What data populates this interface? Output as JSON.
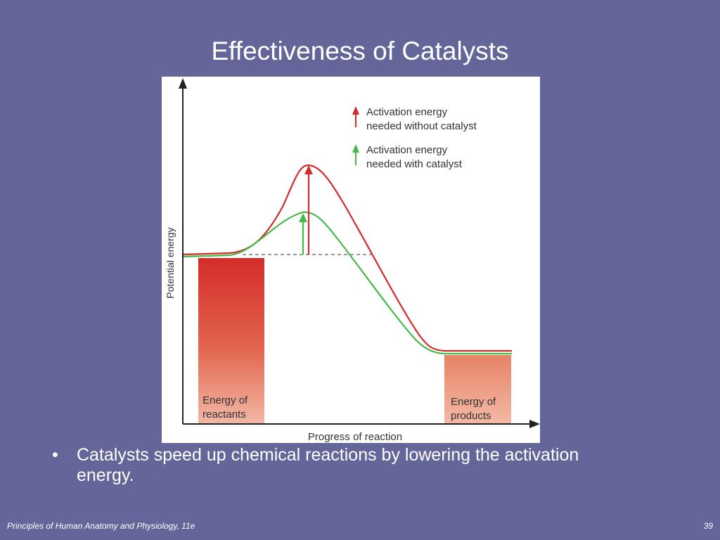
{
  "slide": {
    "title": "Effectiveness of Catalysts",
    "bullet": "Catalysts speed up chemical reactions by lowering the activation energy.",
    "footer_left": "Principles of Human Anatomy and Physiology, 11e",
    "page_number": "39"
  },
  "diagram": {
    "y_axis_label": "Potential energy",
    "x_axis_label": "Progress of reaction",
    "legend": [
      {
        "label_line1": "Activation energy",
        "label_line2": "needed without catalyst",
        "color": "#d42a2a"
      },
      {
        "label_line1": "Activation energy",
        "label_line2": "needed with catalyst",
        "color": "#45b84a"
      }
    ],
    "reactants_label_line1": "Energy of",
    "reactants_label_line2": "reactants",
    "products_label_line1": "Energy of",
    "products_label_line2": "products"
  }
}
